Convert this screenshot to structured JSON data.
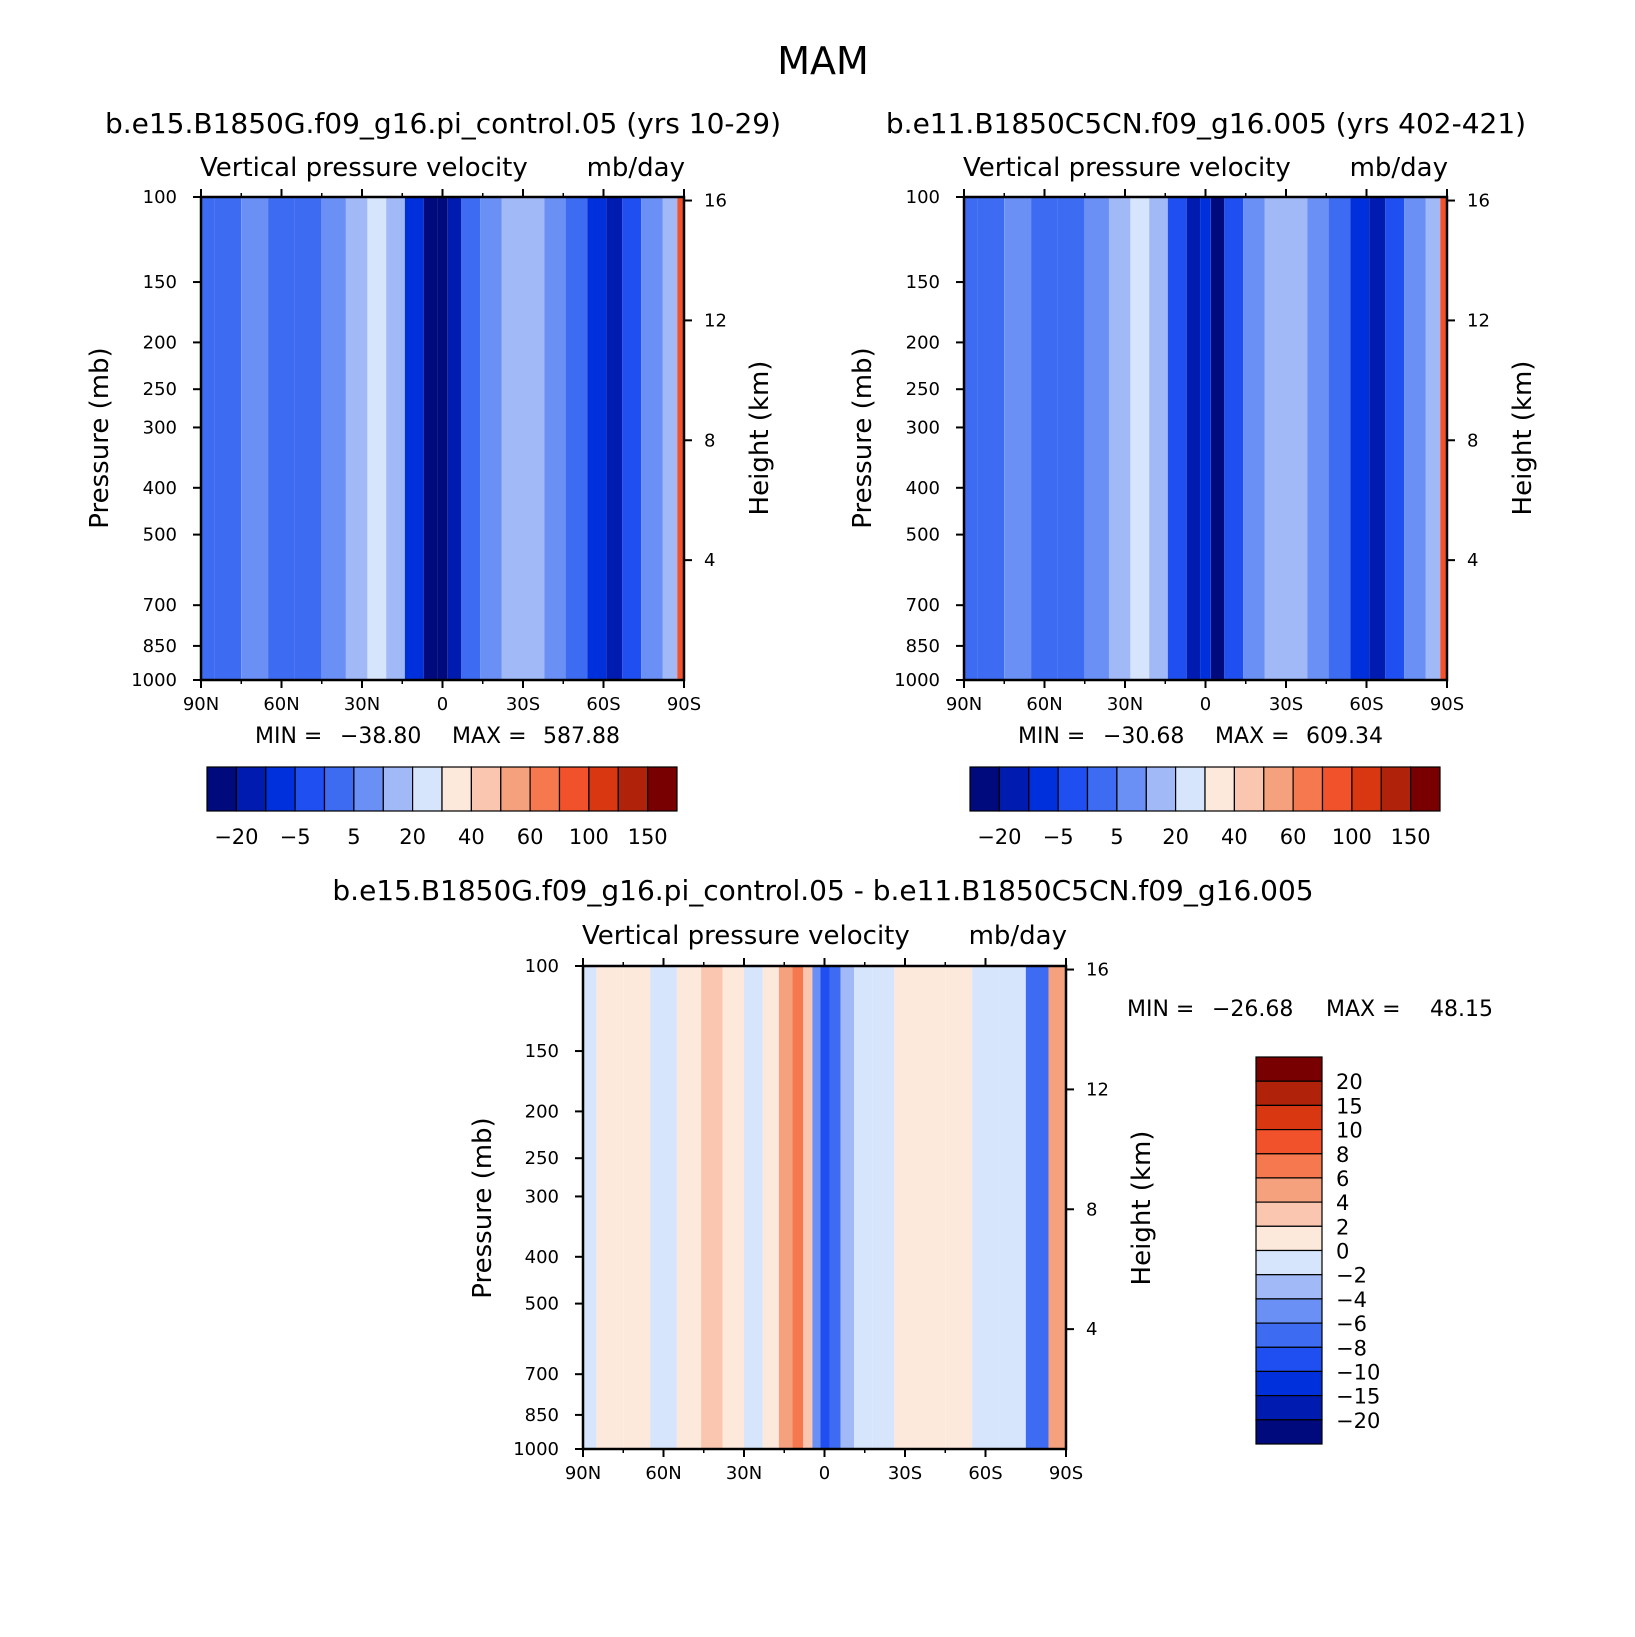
{
  "figure": {
    "title": "MAM"
  },
  "palettes": {
    "abs": [
      "#000a7d",
      "#001bb0",
      "#0030db",
      "#1f4ff0",
      "#3d6cf2",
      "#6a8ff5",
      "#a2b9f7",
      "#d6e5fb",
      "#fde8dc",
      "#fac6b0",
      "#f6a17e",
      "#f5784e",
      "#f2522b",
      "#d93612",
      "#b0230a",
      "#780000"
    ],
    "diff": [
      "#000a7d",
      "#001bb0",
      "#0030db",
      "#1f4ff0",
      "#3d6cf2",
      "#6a8ff5",
      "#a2b9f7",
      "#d6e5fb",
      "#fde8dc",
      "#fac6b0",
      "#f6a17e",
      "#f5784e",
      "#f2522b",
      "#d93612",
      "#b0230a",
      "#780000"
    ]
  },
  "chart_data": [
    {
      "type": "heatmap",
      "id": "panel1",
      "title": "b.e15.B1850G.f09_g16.pi_control.05 (yrs 10-29)",
      "variable": "Vertical pressure velocity",
      "units": "mb/day",
      "xlabel": "",
      "ylabel": "Pressure (mb)",
      "y2label": "Height (km)",
      "x_ticks": [
        "90N",
        "60N",
        "30N",
        "0",
        "30S",
        "60S",
        "90S"
      ],
      "y_ticks": [
        "100",
        "150",
        "200",
        "250",
        "300",
        "400",
        "500",
        "700",
        "850",
        "1000"
      ],
      "y2_ticks": [
        "16",
        "12",
        "8",
        "4"
      ],
      "min": "-38.80",
      "max": "587.88",
      "colorbar_labels": [
        "-20",
        "-5",
        "5",
        "20",
        "40",
        "60",
        "100",
        "150"
      ],
      "columns": [
        {
          "lat": 90,
          "c": 4
        },
        {
          "lat": 80,
          "c": 4
        },
        {
          "lat": 70,
          "c": 5
        },
        {
          "lat": 60,
          "c": 4
        },
        {
          "lat": 50,
          "c": 4
        },
        {
          "lat": 40,
          "c": 5
        },
        {
          "lat": 32,
          "c": 6
        },
        {
          "lat": 24,
          "c": 7
        },
        {
          "lat": 18,
          "c": 6
        },
        {
          "lat": 10,
          "c": 2
        },
        {
          "lat": 4,
          "c": 0
        },
        {
          "lat": 0,
          "c": 0
        },
        {
          "lat": -4,
          "c": 1
        },
        {
          "lat": -10,
          "c": 4
        },
        {
          "lat": -18,
          "c": 5
        },
        {
          "lat": -26,
          "c": 6
        },
        {
          "lat": -34,
          "c": 6
        },
        {
          "lat": -42,
          "c": 5
        },
        {
          "lat": -50,
          "c": 4
        },
        {
          "lat": -58,
          "c": 2
        },
        {
          "lat": -64,
          "c": 1
        },
        {
          "lat": -70,
          "c": 3
        },
        {
          "lat": -78,
          "c": 5
        },
        {
          "lat": -86,
          "c": 6
        },
        {
          "lat": -89,
          "c": 12
        }
      ]
    },
    {
      "type": "heatmap",
      "id": "panel2",
      "title": "b.e11.B1850C5CN.f09_g16.005 (yrs 402-421)",
      "variable": "Vertical pressure velocity",
      "units": "mb/day",
      "xlabel": "",
      "ylabel": "Pressure (mb)",
      "y2label": "Height (km)",
      "x_ticks": [
        "90N",
        "60N",
        "30N",
        "0",
        "30S",
        "60S",
        "90S"
      ],
      "y_ticks": [
        "100",
        "150",
        "200",
        "250",
        "300",
        "400",
        "500",
        "700",
        "850",
        "1000"
      ],
      "y2_ticks": [
        "16",
        "12",
        "8",
        "4"
      ],
      "min": "-30.68",
      "max": "609.34",
      "colorbar_labels": [
        "-20",
        "-5",
        "5",
        "20",
        "40",
        "60",
        "100",
        "150"
      ],
      "columns": [
        {
          "lat": 90,
          "c": 4
        },
        {
          "lat": 80,
          "c": 4
        },
        {
          "lat": 70,
          "c": 5
        },
        {
          "lat": 60,
          "c": 4
        },
        {
          "lat": 50,
          "c": 4
        },
        {
          "lat": 40,
          "c": 5
        },
        {
          "lat": 32,
          "c": 6
        },
        {
          "lat": 24,
          "c": 7
        },
        {
          "lat": 18,
          "c": 6
        },
        {
          "lat": 10,
          "c": 3
        },
        {
          "lat": 4,
          "c": 1
        },
        {
          "lat": 0,
          "c": 2
        },
        {
          "lat": -4,
          "c": 0
        },
        {
          "lat": -10,
          "c": 3
        },
        {
          "lat": -18,
          "c": 5
        },
        {
          "lat": -26,
          "c": 6
        },
        {
          "lat": -34,
          "c": 6
        },
        {
          "lat": -42,
          "c": 5
        },
        {
          "lat": -50,
          "c": 4
        },
        {
          "lat": -58,
          "c": 2
        },
        {
          "lat": -64,
          "c": 1
        },
        {
          "lat": -70,
          "c": 3
        },
        {
          "lat": -78,
          "c": 5
        },
        {
          "lat": -86,
          "c": 6
        },
        {
          "lat": -89,
          "c": 12
        }
      ]
    },
    {
      "type": "heatmap",
      "id": "panel3",
      "title": "b.e15.B1850G.f09_g16.pi_control.05 - b.e11.B1850C5CN.f09_g16.005",
      "variable": "Vertical pressure velocity",
      "units": "mb/day",
      "xlabel": "",
      "ylabel": "Pressure (mb)",
      "y2label": "Height (km)",
      "x_ticks": [
        "90N",
        "60N",
        "30N",
        "0",
        "30S",
        "60S",
        "90S"
      ],
      "y_ticks": [
        "100",
        "150",
        "200",
        "250",
        "300",
        "400",
        "500",
        "700",
        "850",
        "1000"
      ],
      "y2_ticks": [
        "16",
        "12",
        "8",
        "4"
      ],
      "min": "-26.68",
      "max": "48.15",
      "colorbar_labels": [
        "20",
        "15",
        "10",
        "8",
        "6",
        "4",
        "2",
        "0",
        "-2",
        "-4",
        "-6",
        "-8",
        "-10",
        "-15",
        "-20"
      ],
      "columns": [
        {
          "lat": 90,
          "c": 7
        },
        {
          "lat": 80,
          "c": 8
        },
        {
          "lat": 70,
          "c": 8
        },
        {
          "lat": 60,
          "c": 7
        },
        {
          "lat": 50,
          "c": 8
        },
        {
          "lat": 42,
          "c": 9
        },
        {
          "lat": 34,
          "c": 8
        },
        {
          "lat": 26,
          "c": 7
        },
        {
          "lat": 20,
          "c": 8
        },
        {
          "lat": 14,
          "c": 10
        },
        {
          "lat": 10,
          "c": 11
        },
        {
          "lat": 6,
          "c": 9
        },
        {
          "lat": 3,
          "c": 5
        },
        {
          "lat": 0,
          "c": 3
        },
        {
          "lat": -4,
          "c": 4
        },
        {
          "lat": -8,
          "c": 6
        },
        {
          "lat": -14,
          "c": 7
        },
        {
          "lat": -22,
          "c": 7
        },
        {
          "lat": -30,
          "c": 8
        },
        {
          "lat": -40,
          "c": 8
        },
        {
          "lat": -50,
          "c": 8
        },
        {
          "lat": -60,
          "c": 7
        },
        {
          "lat": -70,
          "c": 7
        },
        {
          "lat": -80,
          "c": 4
        },
        {
          "lat": -87,
          "c": 10
        }
      ]
    }
  ]
}
